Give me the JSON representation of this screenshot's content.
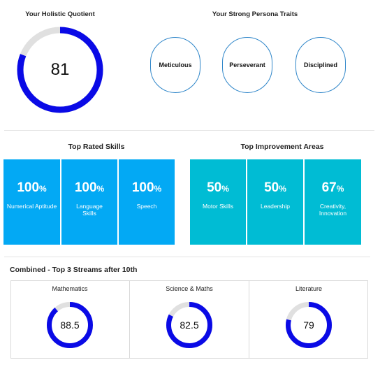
{
  "colors": {
    "ring": "#0a0ae6",
    "ring_track": "#e0e0e0",
    "skills": "#03a9f4",
    "improvement": "#00bcd4",
    "trait_border": "#2f86c9"
  },
  "holistic": {
    "title": "Your Holistic Quotient",
    "value": "81",
    "fraction": 0.81
  },
  "traits": {
    "title": "Your Strong Persona Traits",
    "items": [
      "Meticulous",
      "Perseverant",
      "Disciplined"
    ]
  },
  "top_skills": {
    "title": "Top Rated Skills",
    "items": [
      {
        "value": "100",
        "unit": "%",
        "label": "Numerical Aptitude"
      },
      {
        "value": "100",
        "unit": "%",
        "label": "Language Skills"
      },
      {
        "value": "100",
        "unit": "%",
        "label": "Speech"
      }
    ]
  },
  "improvement": {
    "title": "Top Improvement Areas",
    "items": [
      {
        "value": "50",
        "unit": "%",
        "label": "Motor Skills"
      },
      {
        "value": "50",
        "unit": "%",
        "label": "Leadership"
      },
      {
        "value": "67",
        "unit": "%",
        "label": "Creativity, Innovation"
      }
    ]
  },
  "streams": {
    "title": "Combined - Top 3 Streams after 10th",
    "items": [
      {
        "name": "Mathematics",
        "value": "88.5",
        "fraction": 0.885
      },
      {
        "name": "Science & Maths",
        "value": "82.5",
        "fraction": 0.825
      },
      {
        "name": "Literature",
        "value": "79",
        "fraction": 0.79
      }
    ]
  }
}
